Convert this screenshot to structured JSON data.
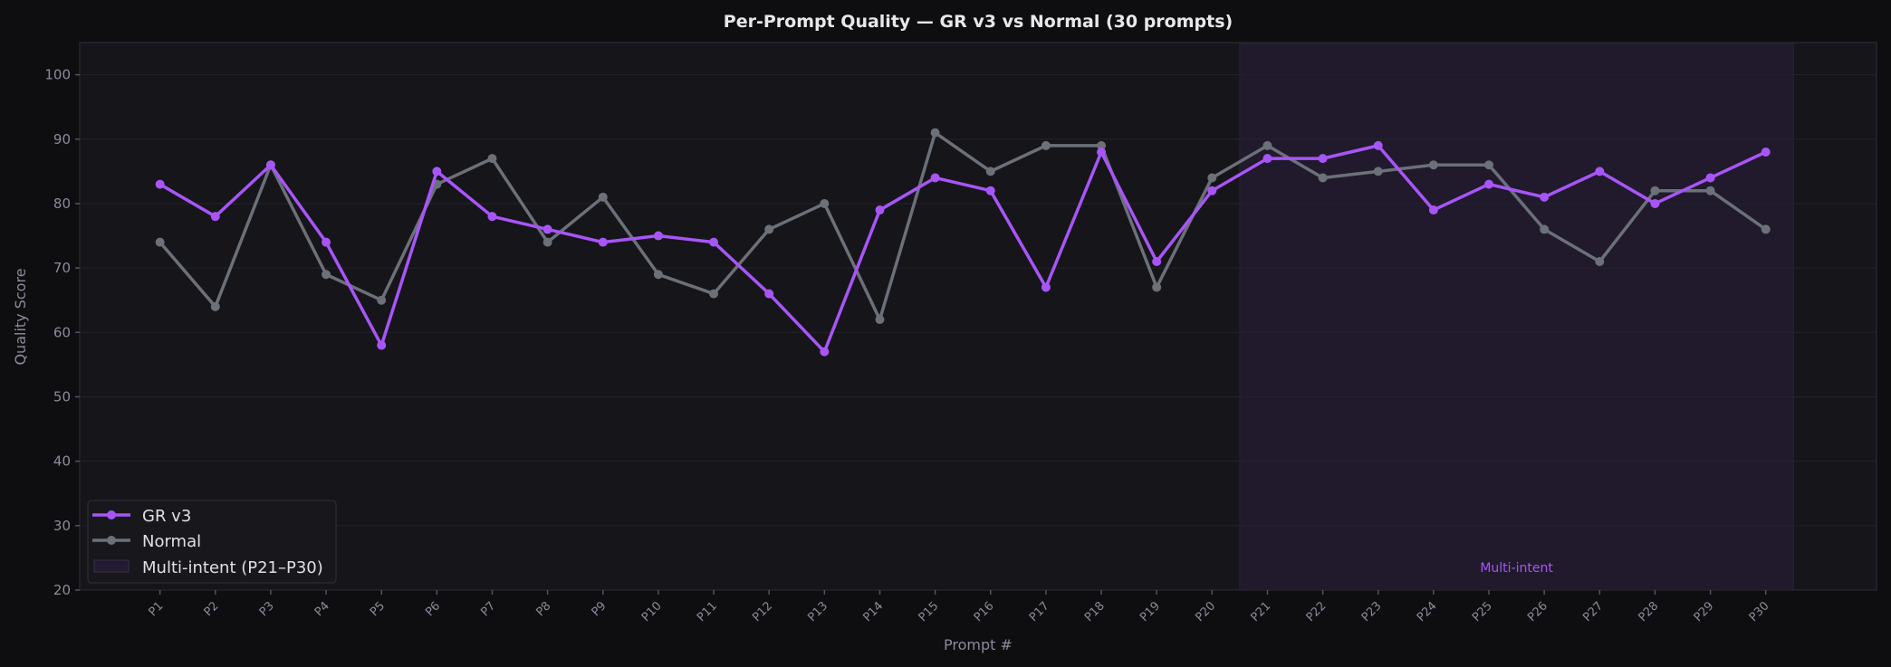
{
  "chart_data": {
    "type": "line",
    "title": "Per-Prompt Quality — GR v3 vs Normal (30 prompts)",
    "xlabel": "Prompt #",
    "ylabel": "Quality Score",
    "ylim": [
      20,
      105
    ],
    "xlim": [
      -0.45,
      32
    ],
    "yticks": [
      20,
      30,
      40,
      50,
      60,
      70,
      80,
      90,
      100
    ],
    "grid": true,
    "legend_position": "bottom-left",
    "categories": [
      "P1",
      "P2",
      "P3",
      "P4",
      "P5",
      "P6",
      "P7",
      "P8",
      "P9",
      "P10",
      "P11",
      "P12",
      "P13",
      "P14",
      "P15",
      "P16",
      "P17",
      "P18",
      "P19",
      "P20",
      "P21",
      "P22",
      "P23",
      "P24",
      "P25",
      "P26",
      "P27",
      "P28",
      "P29",
      "P30"
    ],
    "series": [
      {
        "name": "GR v3",
        "color": "#a855f7",
        "values": [
          83,
          78,
          86,
          74,
          58,
          85,
          78,
          76,
          74,
          75,
          74,
          66,
          57,
          79,
          84,
          82,
          67,
          88,
          71,
          82,
          87,
          87,
          89,
          79,
          83,
          81,
          85,
          80,
          84,
          88
        ]
      },
      {
        "name": "Normal",
        "color": "#6b7079",
        "values": [
          74,
          64,
          86,
          69,
          65,
          83,
          87,
          74,
          81,
          69,
          66,
          76,
          80,
          62,
          91,
          85,
          89,
          89,
          67,
          84,
          89,
          84,
          85,
          86,
          86,
          76,
          71,
          82,
          82,
          76
        ]
      }
    ],
    "shaded_region": {
      "label": "Multi-intent (P21–P30)",
      "annotation": "Multi-intent",
      "from": 20.5,
      "to": 30.5,
      "color": "#201a2c"
    }
  }
}
